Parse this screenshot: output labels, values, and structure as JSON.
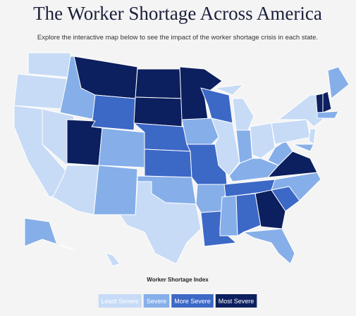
{
  "title": "The Worker Shortage Across America",
  "subtitle": "Explore the interactive map below to see the impact of the worker shortage crisis in each state.",
  "legend": {
    "title": "Worker Shortage Index",
    "items": [
      {
        "label": "Least Severe",
        "color": "#c7dbf6"
      },
      {
        "label": "Severe",
        "color": "#86afe9"
      },
      {
        "label": "More Severe",
        "color": "#3c68c6"
      },
      {
        "label": "Most Severe",
        "color": "#0c1f5e"
      }
    ]
  }
}
